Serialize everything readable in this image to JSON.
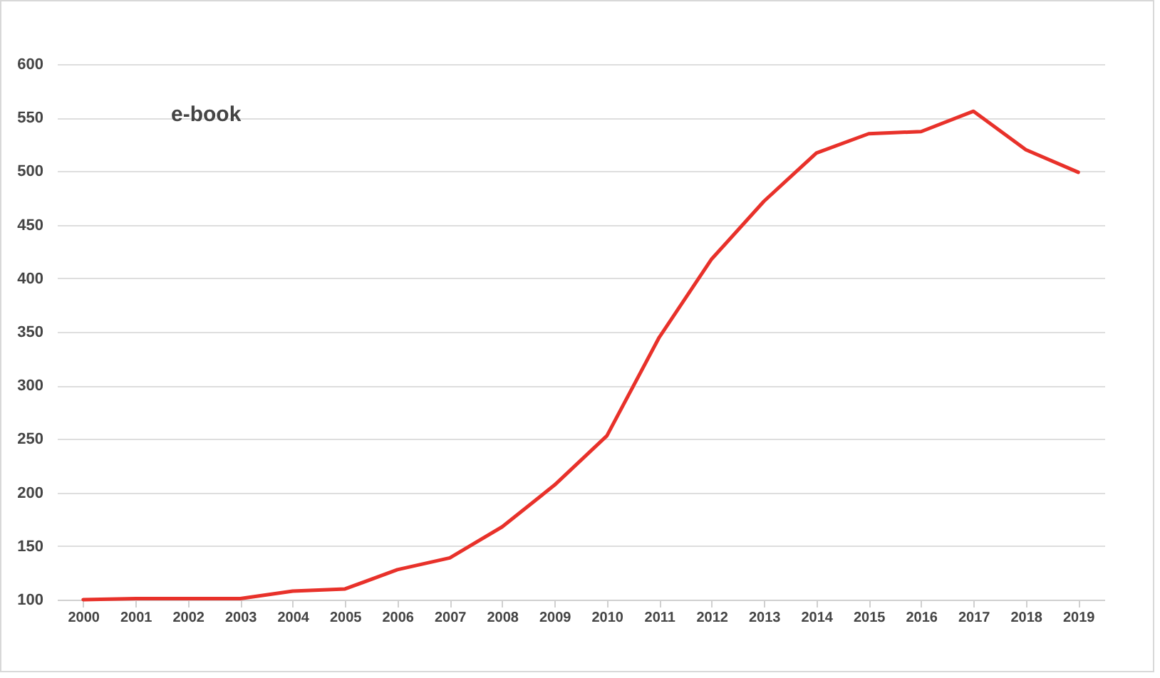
{
  "chart_data": {
    "type": "line",
    "categories": [
      "2000",
      "2001",
      "2002",
      "2003",
      "2004",
      "2005",
      "2006",
      "2007",
      "2008",
      "2009",
      "2010",
      "2011",
      "2012",
      "2013",
      "2014",
      "2015",
      "2016",
      "2017",
      "2018",
      "2019"
    ],
    "series": [
      {
        "name": "e-book",
        "color": "#e8312a",
        "values": [
          100,
          101,
          101,
          101,
          108,
          110,
          128,
          139,
          168,
          207,
          253,
          345,
          418,
          472,
          517,
          535,
          537,
          556,
          520,
          499
        ]
      }
    ],
    "ylim": [
      100,
      600
    ],
    "yticks": [
      100,
      150,
      200,
      250,
      300,
      350,
      400,
      450,
      500,
      550,
      600
    ],
    "grid": "y",
    "marker": "none",
    "line_style": "solid"
  }
}
